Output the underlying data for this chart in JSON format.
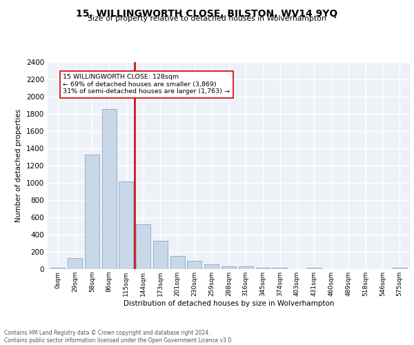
{
  "title": "15, WILLINGWORTH CLOSE, BILSTON, WV14 9YQ",
  "subtitle": "Size of property relative to detached houses in Wolverhampton",
  "xlabel": "Distribution of detached houses by size in Wolverhampton",
  "ylabel": "Number of detached properties",
  "bar_labels": [
    "0sqm",
    "29sqm",
    "58sqm",
    "86sqm",
    "115sqm",
    "144sqm",
    "173sqm",
    "201sqm",
    "230sqm",
    "259sqm",
    "288sqm",
    "316sqm",
    "345sqm",
    "374sqm",
    "403sqm",
    "431sqm",
    "460sqm",
    "489sqm",
    "518sqm",
    "546sqm",
    "575sqm"
  ],
  "bar_values": [
    20,
    130,
    1330,
    1860,
    1020,
    520,
    330,
    155,
    100,
    55,
    35,
    30,
    20,
    15,
    0,
    20,
    0,
    0,
    0,
    0,
    20
  ],
  "bar_color": "#c8d8e8",
  "bar_edge_color": "#7799bb",
  "vline_color": "#cc0000",
  "annotation_text": "15 WILLINGWORTH CLOSE: 128sqm\n← 69% of detached houses are smaller (3,869)\n31% of semi-detached houses are larger (1,763) →",
  "annotation_box_color": "#ffffff",
  "annotation_box_edge": "#cc0000",
  "ylim": [
    0,
    2400
  ],
  "yticks": [
    0,
    200,
    400,
    600,
    800,
    1000,
    1200,
    1400,
    1600,
    1800,
    2000,
    2200,
    2400
  ],
  "footer_line1": "Contains HM Land Registry data © Crown copyright and database right 2024.",
  "footer_line2": "Contains public sector information licensed under the Open Government Licence v3.0.",
  "bg_color": "#eef2f8",
  "grid_color": "#ffffff"
}
